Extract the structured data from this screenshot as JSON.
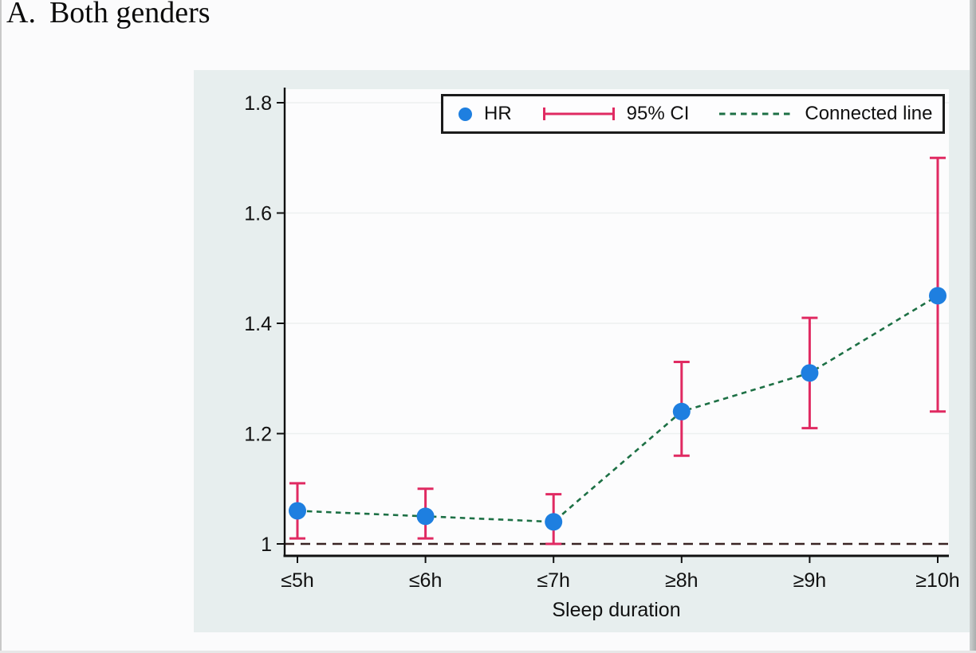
{
  "figure": {
    "title_prefix": "A.",
    "title": "Both genders"
  },
  "legend": {
    "items": [
      {
        "icon": "hr-marker-dot",
        "label": "HR"
      },
      {
        "icon": "ci-errorbar",
        "label": "95% CI"
      },
      {
        "icon": "connected-dashed-line",
        "label": "Connected line"
      }
    ]
  },
  "chart_data": {
    "type": "scatter",
    "subtype": "point-estimates-with-error-bars-and-connected-dashed-line",
    "title": "A. Both genders",
    "xlabel": "Sleep duration",
    "ylabel": "",
    "categories": [
      "≤5h",
      "≤6h",
      "≤7h",
      "≥8h",
      "≥9h",
      "≥10h"
    ],
    "series": [
      {
        "name": "HR",
        "values": [
          1.06,
          1.05,
          1.04,
          1.24,
          1.31,
          1.45
        ],
        "ci_low": [
          1.01,
          1.01,
          1.0,
          1.16,
          1.21,
          1.24
        ],
        "ci_high": [
          1.11,
          1.1,
          1.09,
          1.33,
          1.41,
          1.7
        ]
      }
    ],
    "reference_line_y": 1.0,
    "yticks": [
      1,
      1.2,
      1.4,
      1.6,
      1.8
    ],
    "ytick_labels": [
      "1",
      "1.2",
      "1.4",
      "1.6",
      "1.8"
    ],
    "ylim": [
      0.978,
      1.826
    ],
    "grid": true,
    "legend_position": "top-center-inside",
    "colors": {
      "marker": "#1e7fe0",
      "ci": "#e02a62",
      "connected_line": "#1d7045",
      "reference_line": "#3a2424",
      "panel_background": "#e7eeee",
      "plot_background": "#fcfcfd",
      "gridline": "#edf0f0",
      "axis": "#111111"
    }
  }
}
